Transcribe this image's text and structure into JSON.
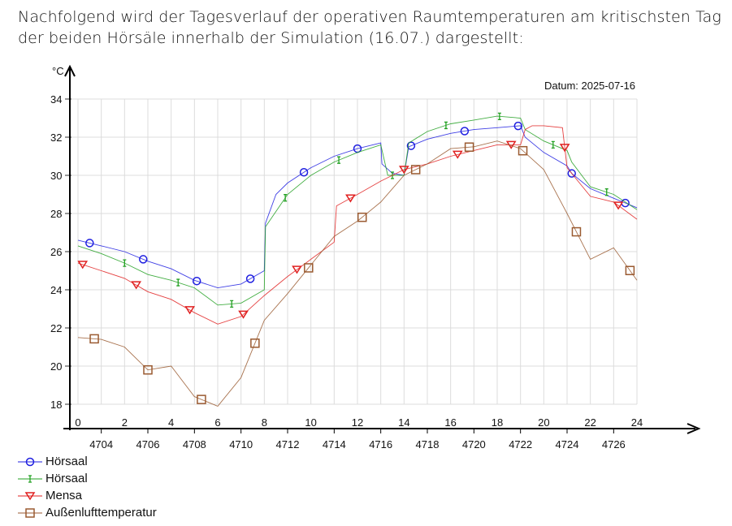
{
  "intro_text": "Nachfolgend wird der Tagesverlauf der operativen Raumtemperaturen am kritischsten Tag der beiden Hörsäle innerhalb der Simulation (16.07.) dargestellt:",
  "chart_data": {
    "type": "line",
    "title": "",
    "annotation": "Datum: 2025-07-16",
    "ylabel": "°C",
    "xlabel": "",
    "xlim": [
      0,
      24
    ],
    "ylim": [
      18,
      34
    ],
    "xticks": [
      0,
      2,
      4,
      6,
      8,
      10,
      12,
      14,
      16,
      18,
      20,
      22,
      24
    ],
    "yticks": [
      18,
      20,
      22,
      24,
      26,
      28,
      30,
      32,
      34
    ],
    "secondary_xticks": [
      {
        "label": "4704",
        "at": 1
      },
      {
        "label": "4706",
        "at": 3
      },
      {
        "label": "4708",
        "at": 5
      },
      {
        "label": "4710",
        "at": 7
      },
      {
        "label": "4712",
        "at": 9
      },
      {
        "label": "4714",
        "at": 11
      },
      {
        "label": "4716",
        "at": 13
      },
      {
        "label": "4718",
        "at": 15
      },
      {
        "label": "4720",
        "at": 17
      },
      {
        "label": "4722",
        "at": 19
      },
      {
        "label": "4724",
        "at": 21
      },
      {
        "label": "4726",
        "at": 23
      }
    ],
    "grid": true,
    "legend_position": "bottom-left",
    "series": [
      {
        "name": "Hörsaal",
        "color": "#1f1fe0",
        "marker": "circle",
        "x": [
          0,
          1,
          2,
          3,
          4,
          5,
          6,
          7,
          8,
          8.05,
          8.5,
          9,
          10,
          11,
          12,
          13,
          13.05,
          13.5,
          14,
          14.2,
          15,
          16,
          17,
          18,
          19,
          19.2,
          20,
          21,
          21.2,
          22,
          23,
          24
        ],
        "y": [
          26.6,
          26.3,
          26.0,
          25.5,
          25.1,
          24.5,
          24.1,
          24.3,
          25.0,
          27.5,
          29.0,
          29.6,
          30.4,
          31.0,
          31.4,
          31.7,
          30.6,
          30.1,
          30.0,
          31.5,
          31.9,
          32.2,
          32.4,
          32.5,
          32.6,
          32.0,
          31.2,
          30.5,
          30.1,
          29.3,
          28.8,
          28.3
        ]
      },
      {
        "name": "Hörsaal",
        "color": "#22a022",
        "marker": "ibeam",
        "x": [
          0,
          1,
          2,
          3,
          4,
          5,
          6,
          7,
          8,
          8.05,
          9,
          10,
          11,
          12,
          13,
          13.3,
          14,
          14.2,
          15,
          16,
          17,
          18,
          19,
          19.2,
          20,
          21,
          21.2,
          22,
          23,
          24
        ],
        "y": [
          26.3,
          25.9,
          25.4,
          24.8,
          24.5,
          24.1,
          23.2,
          23.3,
          24.0,
          27.3,
          29.0,
          30.0,
          30.7,
          31.2,
          31.6,
          30.0,
          30.0,
          31.7,
          32.3,
          32.7,
          32.9,
          33.1,
          33.0,
          32.4,
          31.8,
          31.3,
          30.7,
          29.4,
          29.0,
          28.2
        ]
      },
      {
        "name": "Mensa",
        "color": "#e02020",
        "marker": "triangle-down",
        "x": [
          0,
          1,
          2,
          3,
          4,
          5,
          6,
          7,
          8,
          9,
          10,
          11,
          11.1,
          12,
          13,
          14,
          15,
          16,
          17,
          18,
          19,
          19.2,
          19.5,
          20,
          20.8,
          21,
          22,
          23,
          24
        ],
        "y": [
          25.4,
          25.0,
          24.6,
          23.9,
          23.5,
          22.8,
          22.2,
          22.6,
          23.7,
          24.7,
          25.6,
          26.5,
          28.4,
          29.0,
          29.7,
          30.3,
          30.6,
          31.0,
          31.3,
          31.6,
          31.6,
          32.4,
          32.6,
          32.6,
          32.5,
          30.4,
          28.9,
          28.6,
          27.7
        ]
      },
      {
        "name": "Außenlufttemperatur",
        "color": "#9a5a30",
        "marker": "square",
        "x": [
          0,
          1,
          2,
          3,
          4,
          5,
          6,
          7,
          8,
          9,
          10,
          11,
          12,
          13,
          14,
          15,
          16,
          17,
          18,
          19,
          20,
          21,
          22,
          23,
          24
        ],
        "y": [
          21.5,
          21.4,
          21.0,
          19.8,
          20.0,
          18.4,
          17.9,
          19.4,
          22.4,
          23.8,
          25.3,
          26.8,
          27.6,
          28.6,
          30.0,
          30.6,
          31.4,
          31.5,
          31.8,
          31.4,
          30.3,
          28.0,
          25.6,
          26.2,
          24.5
        ]
      }
    ]
  }
}
